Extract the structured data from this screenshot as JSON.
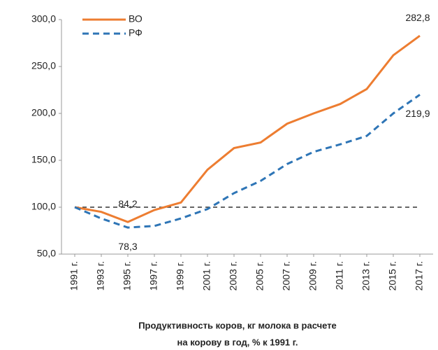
{
  "chart_data": {
    "type": "line",
    "title_lines": [
      "Продуктивность коров, кг молока  в расчете",
      "на корову в год, % к 1991 г."
    ],
    "categories": [
      "1991 г.",
      "1993 г.",
      "1995 г.",
      "1997 г.",
      "1999 г.",
      "2001 г.",
      "2003 г.",
      "2005 г.",
      "2007 г.",
      "2009 г.",
      "2011 г.",
      "2013 г.",
      "2015 г.",
      "2017 г."
    ],
    "series": [
      {
        "name": "ВО",
        "color": "#ed7d31",
        "dash": false,
        "values": [
          100,
          95,
          84.2,
          97,
          105,
          140,
          163,
          169,
          189,
          200,
          210,
          226,
          262,
          282.8
        ],
        "value_labels": [
          null,
          null,
          "84,2",
          null,
          null,
          null,
          null,
          null,
          null,
          null,
          null,
          null,
          null,
          "282,8"
        ]
      },
      {
        "name": "РФ",
        "color": "#2e75b6",
        "dash": true,
        "values": [
          100,
          88,
          78.3,
          80,
          88,
          98,
          115,
          128,
          146,
          159,
          167,
          176,
          200,
          219.9
        ],
        "value_labels": [
          null,
          null,
          "78,3",
          null,
          null,
          null,
          null,
          null,
          null,
          null,
          null,
          null,
          null,
          "219,9"
        ]
      }
    ],
    "reference_line": 100,
    "ylim": [
      50,
      300
    ],
    "yticks": [
      {
        "value": 50,
        "label": "50,0"
      },
      {
        "value": 100,
        "label": "100,0"
      },
      {
        "value": 150,
        "label": "150,0"
      },
      {
        "value": 200,
        "label": "200,0"
      },
      {
        "value": 250,
        "label": "250,0"
      },
      {
        "value": 300,
        "label": "300,0"
      }
    ],
    "legend": "top-left",
    "grid": false
  }
}
